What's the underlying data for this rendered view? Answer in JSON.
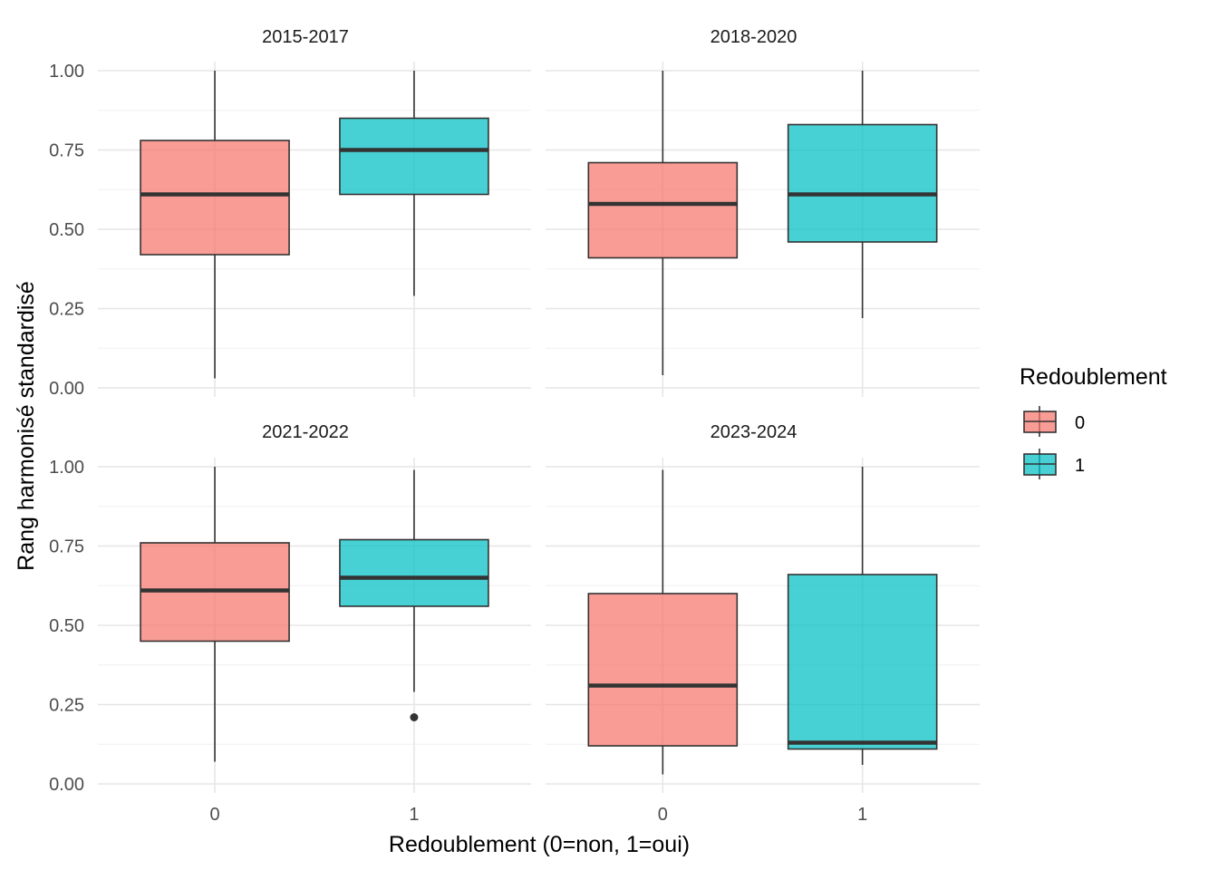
{
  "chart_data": {
    "type": "boxplot",
    "xlabel": "Redoublement (0=non, 1=oui)",
    "ylabel": "Rang harmonisé standardisé",
    "ylim": [
      0,
      1
    ],
    "yticks": [
      0,
      0.25,
      0.5,
      0.75,
      1
    ],
    "ytick_labels": [
      "0.00",
      "0.25",
      "0.50",
      "0.75",
      "1.00"
    ],
    "categories": [
      "0",
      "1"
    ],
    "grid": true,
    "legend": {
      "title": "Redoublement",
      "placement": "right",
      "entries": [
        {
          "label": "0",
          "color": "#F8766D"
        },
        {
          "label": "1",
          "color": "#00BFC4"
        }
      ]
    },
    "panels": [
      {
        "title": "2015-2017",
        "boxes": [
          {
            "category": "0",
            "min": 0.03,
            "q1": 0.42,
            "median": 0.61,
            "q3": 0.78,
            "max": 1.0,
            "outliers": []
          },
          {
            "category": "1",
            "min": 0.29,
            "q1": 0.61,
            "median": 0.75,
            "q3": 0.85,
            "max": 1.0,
            "outliers": []
          }
        ]
      },
      {
        "title": "2018-2020",
        "boxes": [
          {
            "category": "0",
            "min": 0.04,
            "q1": 0.41,
            "median": 0.58,
            "q3": 0.71,
            "max": 1.0,
            "outliers": []
          },
          {
            "category": "1",
            "min": 0.22,
            "q1": 0.46,
            "median": 0.61,
            "q3": 0.83,
            "max": 1.0,
            "outliers": []
          }
        ]
      },
      {
        "title": "2021-2022",
        "boxes": [
          {
            "category": "0",
            "min": 0.07,
            "q1": 0.45,
            "median": 0.61,
            "q3": 0.76,
            "max": 1.0,
            "outliers": []
          },
          {
            "category": "1",
            "min": 0.29,
            "q1": 0.56,
            "median": 0.65,
            "q3": 0.77,
            "max": 0.99,
            "outliers": [
              0.21
            ]
          }
        ]
      },
      {
        "title": "2023-2024",
        "boxes": [
          {
            "category": "0",
            "min": 0.03,
            "q1": 0.12,
            "median": 0.31,
            "q3": 0.6,
            "max": 0.99,
            "outliers": []
          },
          {
            "category": "1",
            "min": 0.06,
            "q1": 0.11,
            "median": 0.13,
            "q3": 0.66,
            "max": 1.0,
            "outliers": []
          }
        ]
      }
    ]
  }
}
